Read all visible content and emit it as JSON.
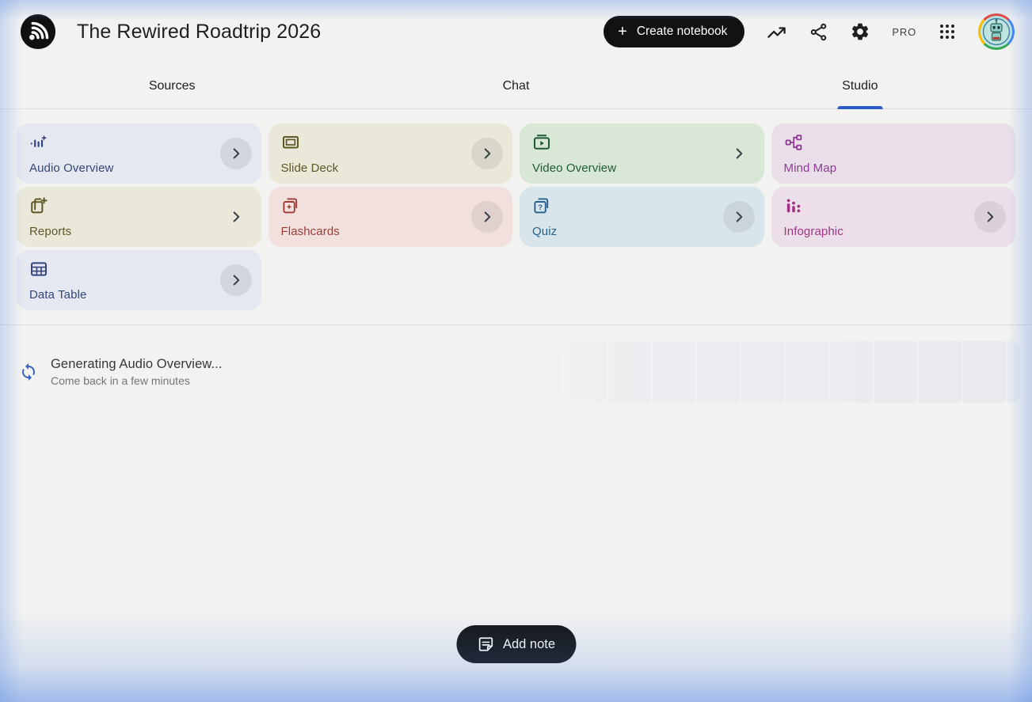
{
  "header": {
    "title": "The Rewired Roadtrip 2026",
    "create_notebook_plus": "+",
    "create_notebook_label": "Create notebook",
    "pro_badge": "PRO",
    "icons": [
      "notebooklm-logo",
      "trending-up-icon",
      "share-icon",
      "settings-icon",
      "apps-grid-icon",
      "avatar"
    ]
  },
  "tabs": [
    {
      "label": "Sources",
      "active": false
    },
    {
      "label": "Chat",
      "active": false
    },
    {
      "label": "Studio",
      "active": true
    }
  ],
  "studio_tools": [
    {
      "label": "Audio Overview",
      "icon": "audio-waveform-icon",
      "theme": "indigo",
      "chevron": "circle"
    },
    {
      "label": "Slide Deck",
      "icon": "slide-deck-icon",
      "theme": "olive",
      "chevron": "circle"
    },
    {
      "label": "Video Overview",
      "icon": "video-overview-icon",
      "theme": "green",
      "chevron": "plain"
    },
    {
      "label": "Mind Map",
      "icon": "mind-map-icon",
      "theme": "purple",
      "chevron": "none"
    },
    {
      "label": "Reports",
      "icon": "reports-icon",
      "theme": "olive",
      "chevron": "plain"
    },
    {
      "label": "Flashcards",
      "icon": "flashcards-icon",
      "theme": "red",
      "chevron": "circle"
    },
    {
      "label": "Quiz",
      "icon": "quiz-icon",
      "theme": "blue",
      "chevron": "circle"
    },
    {
      "label": "Infographic",
      "icon": "infographic-icon",
      "theme": "magenta",
      "chevron": "circle"
    },
    {
      "label": "Data Table",
      "icon": "data-table-icon",
      "theme": "indigo",
      "chevron": "circle"
    }
  ],
  "generating": {
    "title": "Generating Audio Overview...",
    "subtitle": "Come back in a few minutes"
  },
  "add_note_label": "Add note",
  "colors": {
    "accent_underline": "#2b5fc7",
    "spinner_blue": "#3b62c2",
    "button_black": "#131313",
    "page_background": "#f2f2f0",
    "themes": {
      "indigo": {
        "bg": "#e5e7f1",
        "fg": "#33477c"
      },
      "olive": {
        "bg": "#e9e8d9",
        "fg": "#5d5824"
      },
      "green": {
        "bg": "#d9e7d7",
        "fg": "#1f5c33"
      },
      "purple": {
        "bg": "#eadfe8",
        "fg": "#8d3a95"
      },
      "red": {
        "bg": "#f2e0de",
        "fg": "#9e3c33"
      },
      "blue": {
        "bg": "#d8e6ec",
        "fg": "#25618d"
      },
      "magenta": {
        "bg": "#ecdfe9",
        "fg": "#a03386"
      }
    }
  }
}
